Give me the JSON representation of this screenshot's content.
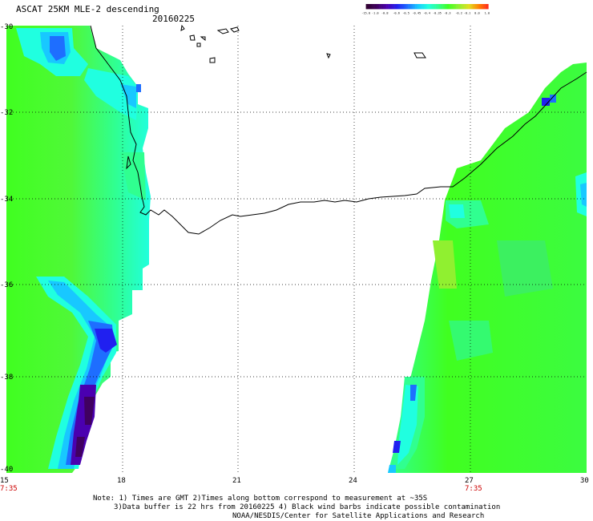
{
  "header": {
    "title": "ASCAT 25KM MLE-2 descending",
    "date": "20160225"
  },
  "colorbar": {
    "labels": [
      "-15.0",
      "-1.0",
      "-0.8",
      "-0.6",
      "-0.5",
      "-0.45",
      "-0.4",
      "-0.35",
      "-0.3",
      "-0.2",
      "-0.1",
      "0.0",
      "1.0"
    ],
    "colors": [
      "#300030",
      "#400060",
      "#4a00b0",
      "#2020f0",
      "#1e6eff",
      "#18c8ff",
      "#20ffe0",
      "#30ff90",
      "#40ff20",
      "#90f030",
      "#e0e020",
      "#ff8000",
      "#ff2020"
    ]
  },
  "axes": {
    "x_ticks": [
      "15",
      "18",
      "21",
      "24",
      "27",
      "30"
    ],
    "y_ticks": [
      "-30",
      "-32",
      "-34",
      "-36",
      "-38",
      "-40"
    ],
    "times": [
      "7:35",
      "7:35"
    ]
  },
  "notes": {
    "line1": "Note: 1) Times are GMT 2)Times along bottom correspond to measurement at ~35S",
    "line2": "3)Data buffer is 22 hrs from 20160225 4) Black wind barbs indicate possible contamination",
    "line3": "NOAA/NESDIS/Center for Satellite Applications and Research"
  },
  "style": {
    "land_color": "#ffffff",
    "coast_color": "#000000",
    "grid": "dotted"
  }
}
